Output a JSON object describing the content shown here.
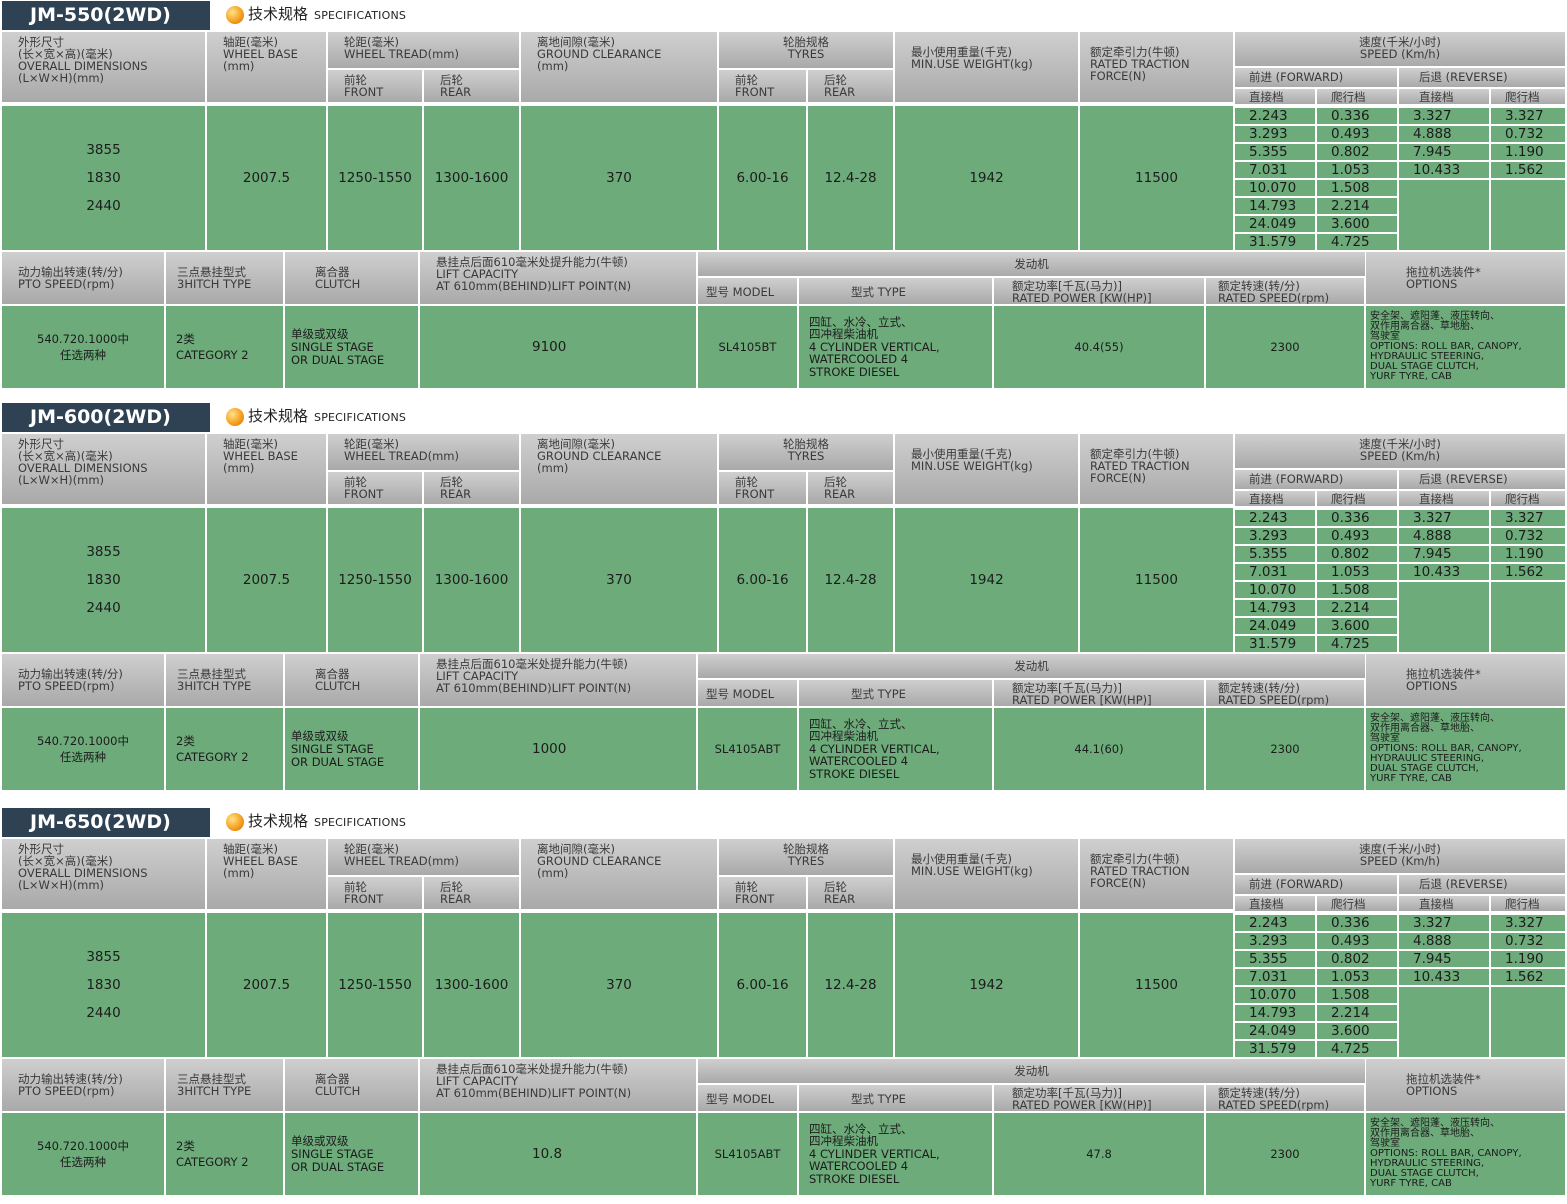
{
  "spec_title_cn": "技术规格",
  "spec_title_en": "SPECIFICATIONS",
  "headers": {
    "dims": "外形尺寸\n(长×宽×高)(毫米)\nOVERALL DIMENSIONS\n(L×W×H)(mm)",
    "wheelbase": "轴距(毫米)\nWHEEL BASE\n(mm)",
    "tread": "轮距(毫米)\nWHEEL TREAD(mm)",
    "tread_front": "前轮\nFRONT",
    "tread_rear": "后轮\nREAR",
    "clearance": "离地间隙(毫米)\nGROUND CLEARANCE\n(mm)",
    "tyres": "轮胎规格\nTYRES",
    "tyre_front": "前轮\nFRONT",
    "tyre_rear": "后轮\nREAR",
    "weight": "最小使用重量(千克)\nMIN.USE WEIGHT(kg)",
    "traction": "额定牵引力(牛顿)\nRATED TRACTION\nFORCE(N)",
    "speed": "速度(千米/小时)\nSPEED (Km/h)",
    "forward": "前进 (FORWARD)",
    "reverse": "后退 (REVERSE)",
    "direct": "直接档",
    "crawl": "爬行档",
    "pto": "动力输出转速(转/分)\nPTO SPEED(rpm)",
    "hitch": "三点悬挂型式\n3HITCH TYPE",
    "clutch": "离合器\nCLUTCH",
    "lift": "悬挂点后面610毫米处提升能力(牛顿)\nLIFT CAPACITY\nAT 610mm(BEHIND)LIFT POINT(N)",
    "engine": "发动机",
    "engine_model": "型号 MODEL",
    "engine_type": "型式 TYPE",
    "engine_power": "额定功率[千瓦(马力)]\nRATED POWER [KW(HP)]",
    "engine_speed": "额定转速(转/分)\nRATED SPEED(rpm)",
    "options": "拖拉机选装件*\nOPTIONS"
  },
  "blocks": [
    {
      "model": "JM-550(2WD)",
      "dims": [
        "3855",
        "1830",
        "2440"
      ],
      "wheelbase": "2007.5",
      "tread_front": "1250-1550",
      "tread_rear": "1300-1600",
      "clearance": "370",
      "tyre_front": "6.00-16",
      "tyre_rear": "12.4-28",
      "weight": "1942",
      "traction": "11500",
      "fwd_direct": [
        "2.243",
        "3.293",
        "5.355",
        "7.031",
        "10.070",
        "14.793",
        "24.049",
        "31.579"
      ],
      "fwd_crawl": [
        "0.336",
        "0.493",
        "0.802",
        "1.053",
        "1.508",
        "2.214",
        "3.600",
        "4.725"
      ],
      "rev_direct": [
        "3.327",
        "4.888",
        "7.945",
        "10.433"
      ],
      "rev_crawl": [
        "3.327",
        "0.732",
        "1.190",
        "1.562"
      ],
      "pto": "540.720.1000中\n任选两种",
      "hitch": "2类\nCATEGORY 2",
      "clutch": "单级或双级\nSINGLE STAGE\nOR DUAL STAGE",
      "lift": "9100",
      "engine_model": "SL4105BT",
      "engine_type": "四缸、水冷、立式、\n四冲程柴油机\n4 CYLINDER VERTICAL,\nWATERCOOLED 4\nSTROKE DIESEL",
      "engine_power": "40.4(55)",
      "engine_speed": "2300",
      "options": "安全架、遮阳蓬、液压转向、\n双作用离合器、草地胎、\n驾驶室\nOPTIONS: ROLL BAR, CANOPY,\nHYDRAULIC STEERING,\nDUAL STAGE CLUTCH,\nYURF TYRE, CAB"
    },
    {
      "model": "JM-600(2WD)",
      "dims": [
        "3855",
        "1830",
        "2440"
      ],
      "wheelbase": "2007.5",
      "tread_front": "1250-1550",
      "tread_rear": "1300-1600",
      "clearance": "370",
      "tyre_front": "6.00-16",
      "tyre_rear": "12.4-28",
      "weight": "1942",
      "traction": "11500",
      "fwd_direct": [
        "2.243",
        "3.293",
        "5.355",
        "7.031",
        "10.070",
        "14.793",
        "24.049",
        "31.579"
      ],
      "fwd_crawl": [
        "0.336",
        "0.493",
        "0.802",
        "1.053",
        "1.508",
        "2.214",
        "3.600",
        "4.725"
      ],
      "rev_direct": [
        "3.327",
        "4.888",
        "7.945",
        "10.433"
      ],
      "rev_crawl": [
        "3.327",
        "0.732",
        "1.190",
        "1.562"
      ],
      "pto": "540.720.1000中\n任选两种",
      "hitch": "2类\nCATEGORY 2",
      "clutch": "单级或双级\nSINGLE STAGE\nOR DUAL STAGE",
      "lift": "1000",
      "engine_model": "SL4105ABT",
      "engine_type": "四缸、水冷、立式、\n四冲程柴油机\n4 CYLINDER VERTICAL,\nWATERCOOLED 4\nSTROKE DIESEL",
      "engine_power": "44.1(60)",
      "engine_speed": "2300",
      "options": "安全架、遮阳蓬、液压转向、\n双作用离合器、草地胎、\n驾驶室\nOPTIONS: ROLL BAR, CANOPY,\nHYDRAULIC STEERING,\nDUAL STAGE CLUTCH,\nYURF TYRE, CAB"
    },
    {
      "model": "JM-650(2WD)",
      "dims": [
        "3855",
        "1830",
        "2440"
      ],
      "wheelbase": "2007.5",
      "tread_front": "1250-1550",
      "tread_rear": "1300-1600",
      "clearance": "370",
      "tyre_front": "6.00-16",
      "tyre_rear": "12.4-28",
      "weight": "1942",
      "traction": "11500",
      "fwd_direct": [
        "2.243",
        "3.293",
        "5.355",
        "7.031",
        "10.070",
        "14.793",
        "24.049",
        "31.579"
      ],
      "fwd_crawl": [
        "0.336",
        "0.493",
        "0.802",
        "1.053",
        "1.508",
        "2.214",
        "3.600",
        "4.725"
      ],
      "rev_direct": [
        "3.327",
        "4.888",
        "7.945",
        "10.433"
      ],
      "rev_crawl": [
        "3.327",
        "0.732",
        "1.190",
        "1.562"
      ],
      "pto": "540.720.1000中\n任选两种",
      "hitch": "2类\nCATEGORY 2",
      "clutch": "单级或双级\nSINGLE STAGE\nOR DUAL STAGE",
      "lift": "10.8",
      "engine_model": "SL4105ABT",
      "engine_type": "四缸、水冷、立式、\n四冲程柴油机\n4 CYLINDER VERTICAL,\nWATERCOOLED 4\nSTROKE DIESEL",
      "engine_power": "47.8",
      "engine_speed": "2300",
      "options": "安全架、遮阳蓬、液压转向、\n双作用离合器、草地胎、\n驾驶室\nOPTIONS: ROLL BAR, CANOPY,\nHYDRAULIC STEERING,\nDUAL STAGE CLUTCH,\nYURF TYRE, CAB"
    }
  ]
}
